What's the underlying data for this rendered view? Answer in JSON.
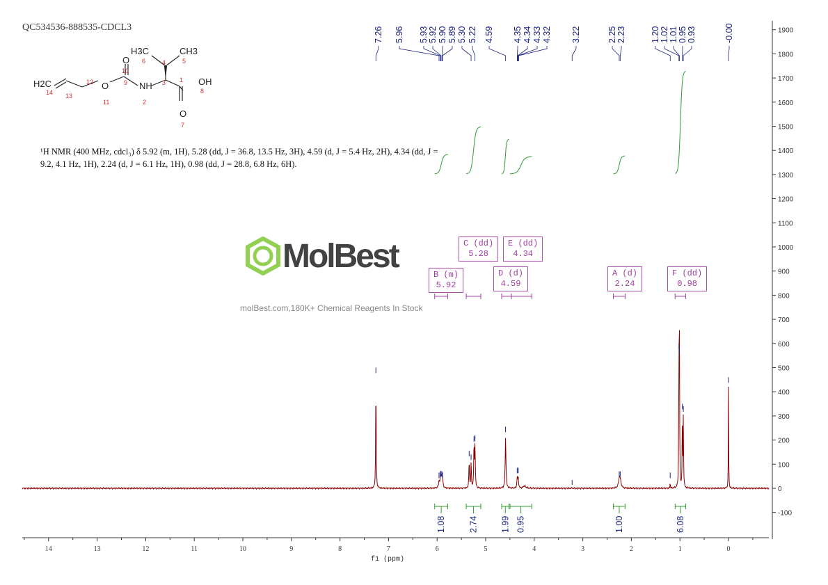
{
  "sample_id": "QC534536-888535-CDCL3",
  "nmr_description": "¹H NMR (400 MHz, cdcl₃) δ 5.92 (m, 1H), 5.28 (dd, J = 36.8, 13.5 Hz, 3H), 4.59 (d, J = 5.4 Hz, 2H), 4.34 (dd, J = 9.2, 4.1 Hz, 1H), 2.24 (d, J = 6.1 Hz, 1H), 0.98 (dd, J = 28.8, 6.8 Hz, 6H).",
  "structure": {
    "atoms": [
      "H2C",
      "14",
      "13",
      "12",
      "O",
      "11",
      "9",
      "O",
      "10",
      "NH",
      "2",
      "3",
      "4",
      "H3C",
      "6",
      "CH3",
      "5",
      "1",
      "OH",
      "8",
      "O",
      "7"
    ]
  },
  "watermark": {
    "brand": "MolBest",
    "tagline": "molBest.com,180K+ Chemical Reagents In Stock"
  },
  "colors": {
    "spectrum": "#8b0000",
    "integral": "#2e9a2e",
    "labels": "#1a237e",
    "multiplet": "#a040a0"
  },
  "multiplets": [
    {
      "letter": "B (m)",
      "shift": "5.92",
      "range": [
        6.05,
        5.78
      ]
    },
    {
      "letter": "C (dd)",
      "shift": "5.28",
      "range": [
        5.4,
        5.1
      ]
    },
    {
      "letter": "D (d)",
      "shift": "4.59",
      "range": [
        4.67,
        4.47
      ]
    },
    {
      "letter": "E (dd)",
      "shift": "4.34",
      "range": [
        4.47,
        4.05
      ]
    },
    {
      "letter": "A (d)",
      "shift": "2.24",
      "range": [
        2.37,
        2.13
      ]
    },
    {
      "letter": "F (dd)",
      "shift": "0.98",
      "range": [
        1.1,
        0.88
      ]
    }
  ],
  "chart_data": {
    "type": "line",
    "xlabel": "f1 (ppm)",
    "xlim": [
      14.55,
      -0.83
    ],
    "ylim": [
      -190,
      1930
    ],
    "x_ticks": [
      14,
      13,
      12,
      11,
      10,
      9,
      8,
      7,
      6,
      5,
      4,
      3,
      2,
      1,
      0
    ],
    "y_ticks": [
      1900,
      1800,
      1700,
      1600,
      1500,
      1400,
      1300,
      1200,
      1100,
      1000,
      900,
      800,
      700,
      600,
      500,
      400,
      300,
      200,
      100,
      0,
      -100
    ],
    "peak_labels": [
      "7.26",
      "5.96",
      "5.93",
      "5.92",
      "5.90",
      "5.89",
      "5.30",
      "5.22",
      "4.59",
      "4.35",
      "4.34",
      "4.33",
      "4.32",
      "3.22",
      "2.25",
      "2.23",
      "1.20",
      "1.02",
      "1.01",
      "0.95",
      "0.93",
      "-0.00"
    ],
    "peak_label_ppm": [
      7.26,
      5.96,
      5.93,
      5.92,
      5.9,
      5.89,
      5.3,
      5.22,
      4.59,
      4.35,
      4.34,
      4.33,
      4.32,
      3.22,
      2.25,
      2.23,
      1.2,
      1.02,
      1.01,
      0.95,
      0.93,
      0.0
    ],
    "peaks": [
      {
        "ppm": 7.26,
        "height": 460,
        "width": 0.006
      },
      {
        "ppm": 5.96,
        "height": 25,
        "width": 0.012
      },
      {
        "ppm": 5.93,
        "height": 30,
        "width": 0.012
      },
      {
        "ppm": 5.92,
        "height": 32,
        "width": 0.012
      },
      {
        "ppm": 5.9,
        "height": 30,
        "width": 0.012
      },
      {
        "ppm": 5.89,
        "height": 25,
        "width": 0.012
      },
      {
        "ppm": 5.34,
        "height": 115,
        "width": 0.007
      },
      {
        "ppm": 5.3,
        "height": 100,
        "width": 0.007
      },
      {
        "ppm": 5.24,
        "height": 175,
        "width": 0.007
      },
      {
        "ppm": 5.22,
        "height": 180,
        "width": 0.007
      },
      {
        "ppm": 4.59,
        "height": 215,
        "width": 0.009
      },
      {
        "ppm": 4.35,
        "height": 45,
        "width": 0.008
      },
      {
        "ppm": 4.33,
        "height": 45,
        "width": 0.008
      },
      {
        "ppm": 4.2,
        "height": 10,
        "width": 0.03
      },
      {
        "ppm": 3.22,
        "height": 3,
        "width": 0.005
      },
      {
        "ppm": 2.25,
        "height": 30,
        "width": 0.02
      },
      {
        "ppm": 2.23,
        "height": 30,
        "width": 0.02
      },
      {
        "ppm": 1.2,
        "height": 25,
        "width": 0.004
      },
      {
        "ppm": 1.02,
        "height": 560,
        "width": 0.005
      },
      {
        "ppm": 1.01,
        "height": 540,
        "width": 0.005
      },
      {
        "ppm": 0.95,
        "height": 310,
        "width": 0.005
      },
      {
        "ppm": 0.93,
        "height": 300,
        "width": 0.005
      },
      {
        "ppm": 0.0,
        "height": 420,
        "width": 0.004
      }
    ],
    "integrals": [
      {
        "range": [
          6.05,
          5.78
        ],
        "value": "1.08"
      },
      {
        "range": [
          5.4,
          5.1
        ],
        "value": "2.74"
      },
      {
        "range": [
          4.67,
          4.52
        ],
        "value": "1.99"
      },
      {
        "range": [
          4.5,
          4.05
        ],
        "value": "0.95"
      },
      {
        "range": [
          2.37,
          2.13
        ],
        "value": "1.00"
      },
      {
        "range": [
          1.1,
          0.88
        ],
        "value": "6.08"
      }
    ]
  }
}
